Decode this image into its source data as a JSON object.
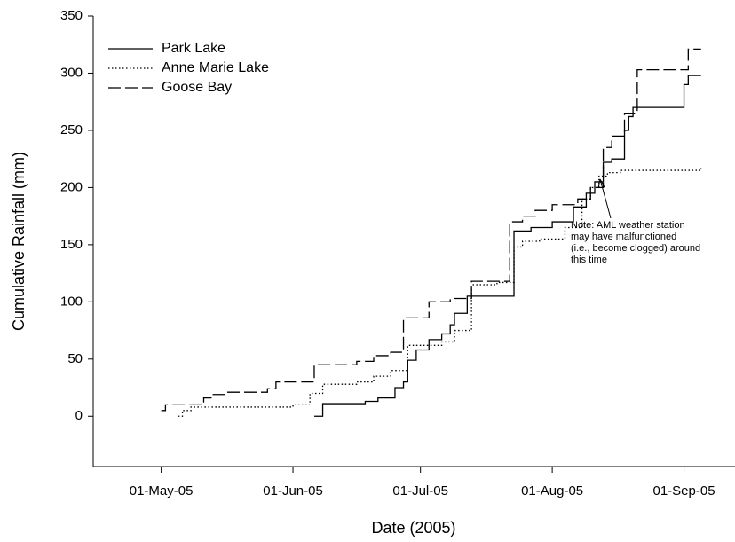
{
  "chart_data": {
    "type": "line",
    "step": true,
    "xlabel": "Date (2005)",
    "ylabel": "Cumulative Rainfall (mm)",
    "xlim": [
      "2005-04-15",
      "2005-09-13"
    ],
    "ylim": [
      -44,
      350
    ],
    "xticks": [
      {
        "value": "2005-05-01",
        "label": "01-May-05"
      },
      {
        "value": "2005-06-01",
        "label": "01-Jun-05"
      },
      {
        "value": "2005-07-01",
        "label": "01-Jul-05"
      },
      {
        "value": "2005-08-01",
        "label": "01-Aug-05"
      },
      {
        "value": "2005-09-01",
        "label": "01-Sep-05"
      }
    ],
    "yticks": [
      0,
      50,
      100,
      150,
      200,
      250,
      300,
      350
    ],
    "legend": "upper left",
    "series": [
      {
        "name": "Park Lake",
        "color": "#000000",
        "linestyle": "solid",
        "x": [
          "2005-06-06",
          "2005-06-08",
          "2005-06-18",
          "2005-06-21",
          "2005-06-25",
          "2005-06-27",
          "2005-06-28",
          "2005-06-30",
          "2005-07-03",
          "2005-07-06",
          "2005-07-08",
          "2005-07-09",
          "2005-07-12",
          "2005-07-23",
          "2005-07-27",
          "2005-08-01",
          "2005-08-06",
          "2005-08-09",
          "2005-08-11",
          "2005-08-13",
          "2005-08-15",
          "2005-08-18",
          "2005-08-19",
          "2005-08-20",
          "2005-09-01",
          "2005-09-02",
          "2005-09-05"
        ],
        "values": [
          0,
          11,
          13,
          16,
          25,
          30,
          49,
          58,
          67,
          72,
          80,
          90,
          105,
          162,
          165,
          170,
          183,
          195,
          205,
          222,
          225,
          250,
          262,
          270,
          290,
          298,
          298
        ]
      },
      {
        "name": "Anne Marie Lake",
        "color": "#000000",
        "linestyle": "dotted",
        "x": [
          "2005-05-05",
          "2005-05-06",
          "2005-05-08",
          "2005-06-01",
          "2005-06-05",
          "2005-06-08",
          "2005-06-16",
          "2005-06-20",
          "2005-06-24",
          "2005-06-28",
          "2005-07-06",
          "2005-07-09",
          "2005-07-13",
          "2005-07-19",
          "2005-07-23",
          "2005-07-25",
          "2005-07-29",
          "2005-08-04",
          "2005-08-08",
          "2005-08-10",
          "2005-08-12",
          "2005-08-14",
          "2005-08-17",
          "2005-09-05"
        ],
        "values": [
          0,
          5,
          8,
          10,
          20,
          28,
          30,
          35,
          40,
          62,
          65,
          75,
          115,
          117,
          148,
          153,
          155,
          165,
          190,
          200,
          210,
          213,
          215,
          217
        ]
      },
      {
        "name": "Goose Bay",
        "color": "#000000",
        "linestyle": "dashed",
        "x": [
          "2005-05-01",
          "2005-05-02",
          "2005-05-11",
          "2005-05-13",
          "2005-05-16",
          "2005-05-26",
          "2005-05-28",
          "2005-06-06",
          "2005-06-16",
          "2005-06-20",
          "2005-06-24",
          "2005-06-27",
          "2005-07-03",
          "2005-07-08",
          "2005-07-13",
          "2005-07-22",
          "2005-07-25",
          "2005-07-28",
          "2005-08-01",
          "2005-08-07",
          "2005-08-10",
          "2005-08-13",
          "2005-08-15",
          "2005-08-18",
          "2005-08-21",
          "2005-09-02",
          "2005-09-05"
        ],
        "values": [
          5,
          10,
          16,
          19,
          21,
          24,
          30,
          45,
          48,
          53,
          56,
          86,
          100,
          103,
          118,
          170,
          175,
          180,
          185,
          190,
          200,
          235,
          245,
          265,
          303,
          321,
          321
        ]
      }
    ],
    "annotation": {
      "lines": [
        "Note: AML weather station",
        "may have malfunctioned",
        "(i.e., become clogged) around",
        "this time"
      ]
    }
  }
}
